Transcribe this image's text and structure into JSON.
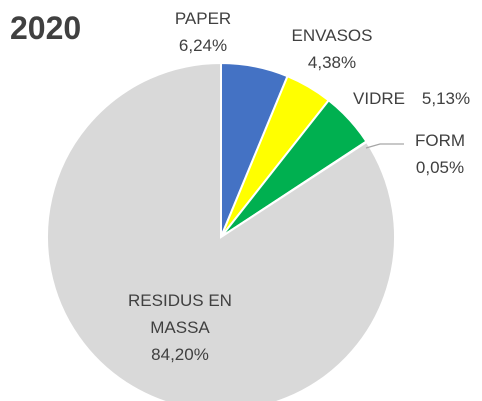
{
  "chart_data": {
    "type": "pie",
    "title": "2020",
    "categories": [
      "PAPER",
      "ENVASOS",
      "VIDRE",
      "FORM",
      "RESIDUS EN MASSA"
    ],
    "values": [
      6.24,
      4.38,
      5.13,
      0.05,
      84.2
    ],
    "value_labels": [
      "6,24%",
      "4,38%",
      "5,13%",
      "0,05%",
      "84,20%"
    ],
    "colors": [
      "#4472c4",
      "#ffff00",
      "#00b050",
      "#a5a5a5",
      "#d9d9d9"
    ]
  }
}
